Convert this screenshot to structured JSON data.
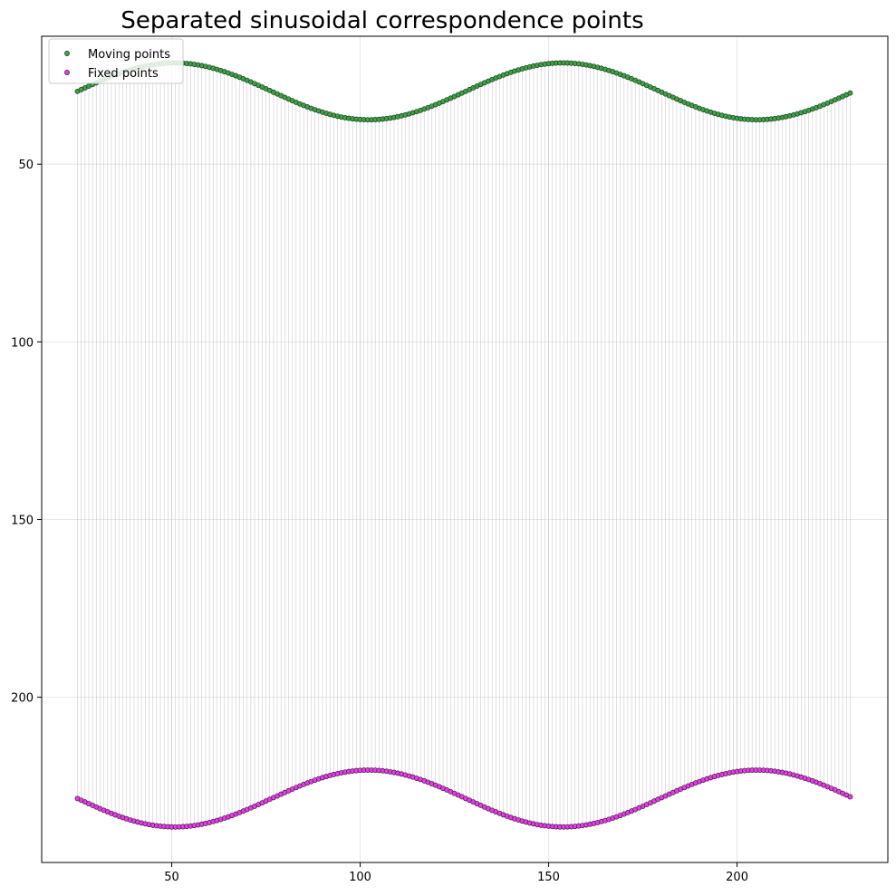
{
  "chart_data": {
    "type": "scatter",
    "title": "Separated sinusoidal correspondence points",
    "xlabel": "",
    "ylabel": "",
    "xlim": [
      15.5,
      240
    ],
    "ylim": [
      246.5,
      14
    ],
    "y_inverted": true,
    "grid": true,
    "legend_position": "upper-left",
    "x_ticks": [
      50,
      100,
      150,
      200
    ],
    "y_ticks": [
      50,
      100,
      150,
      200
    ],
    "correspondence_lines": true,
    "line_color": "#b8b8b8",
    "series": [
      {
        "name": "Moving points",
        "color": "#3fa04a",
        "edge_color": "#1a3d1a",
        "x_start": 25,
        "x_end": 230,
        "count": 206,
        "y_formula": "y = 29.5 - 8 * sin(2*pi*(x - 25)/103)",
        "amplitude": 8,
        "center": 29.5,
        "period": 103,
        "phase_x": 25,
        "sign": -1
      },
      {
        "name": "Fixed points",
        "color": "#e040e0",
        "edge_color": "#4a154a",
        "x_start": 25,
        "x_end": 230,
        "count": 206,
        "y_formula": "y = 228.5 + 8 * sin(2*pi*(x - 25)/103)",
        "amplitude": 8,
        "center": 228.5,
        "period": 103,
        "phase_x": 25,
        "sign": 1
      }
    ]
  }
}
